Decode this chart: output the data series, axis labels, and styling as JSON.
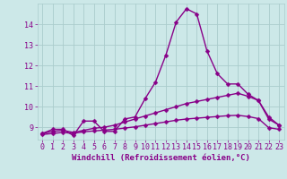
{
  "background_color": "#cce8e8",
  "grid_color": "#aacccc",
  "line_color": "#880088",
  "marker": "D",
  "marker_size": 2.5,
  "linewidth": 1.0,
  "xlabel": "Windchill (Refroidissement éolien,°C)",
  "xlabel_fontsize": 6.5,
  "tick_fontsize": 6,
  "xlim": [
    -0.5,
    23.5
  ],
  "ylim": [
    8.4,
    15.0
  ],
  "yticks": [
    9,
    10,
    11,
    12,
    13,
    14
  ],
  "xticks": [
    0,
    1,
    2,
    3,
    4,
    5,
    6,
    7,
    8,
    9,
    10,
    11,
    12,
    13,
    14,
    15,
    16,
    17,
    18,
    19,
    20,
    21,
    22,
    23
  ],
  "series": [
    {
      "x": [
        0,
        1,
        2,
        3,
        4,
        5,
        6,
        7,
        8,
        9,
        10,
        11,
        12,
        13,
        14,
        15,
        16,
        17,
        18,
        19,
        20,
        21,
        22,
        23
      ],
      "y": [
        8.7,
        8.9,
        8.9,
        8.6,
        9.3,
        9.3,
        8.8,
        8.8,
        9.4,
        9.5,
        10.4,
        11.2,
        12.5,
        14.1,
        14.75,
        14.5,
        12.7,
        11.6,
        11.1,
        11.1,
        10.6,
        10.3,
        9.4,
        9.1
      ]
    },
    {
      "x": [
        0,
        1,
        2,
        3,
        4,
        5,
        6,
        7,
        8,
        9,
        10,
        11,
        12,
        13,
        14,
        15,
        16,
        17,
        18,
        19,
        20,
        21,
        22,
        23
      ],
      "y": [
        8.7,
        8.8,
        8.85,
        8.75,
        8.85,
        8.95,
        9.0,
        9.1,
        9.25,
        9.4,
        9.55,
        9.7,
        9.85,
        10.0,
        10.15,
        10.25,
        10.35,
        10.45,
        10.55,
        10.65,
        10.5,
        10.3,
        9.5,
        9.1
      ]
    },
    {
      "x": [
        0,
        1,
        2,
        3,
        4,
        5,
        6,
        7,
        8,
        9,
        10,
        11,
        12,
        13,
        14,
        15,
        16,
        17,
        18,
        19,
        20,
        21,
        22,
        23
      ],
      "y": [
        8.65,
        8.7,
        8.75,
        8.7,
        8.78,
        8.82,
        8.86,
        8.9,
        8.96,
        9.02,
        9.1,
        9.18,
        9.26,
        9.34,
        9.4,
        9.44,
        9.48,
        9.52,
        9.56,
        9.58,
        9.52,
        9.42,
        8.98,
        8.9
      ]
    }
  ]
}
